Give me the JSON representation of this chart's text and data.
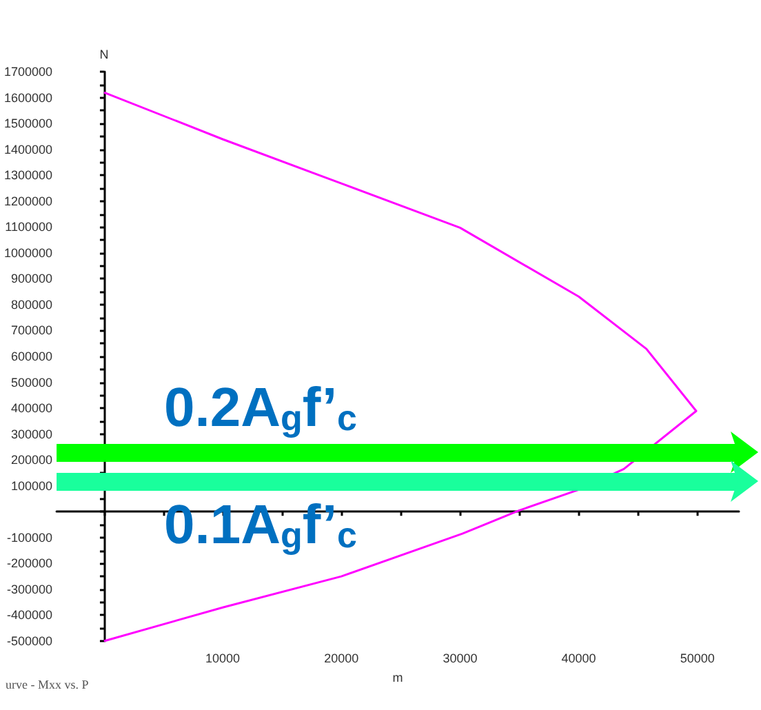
{
  "chart_data": {
    "type": "line",
    "xlabel": "m",
    "ylabel": "N",
    "x": [
      0,
      10000,
      20000,
      30000,
      40000,
      45700,
      49900,
      43800,
      40000,
      35000,
      30200,
      20000,
      10000,
      0
    ],
    "series": [
      {
        "color": "#ff00ff",
        "values": [
          1620000,
          1439000,
          1268000,
          1097000,
          831000,
          629000,
          389000,
          165000,
          85000,
          5000,
          -85000,
          -250000,
          -370000,
          -500000
        ]
      }
    ],
    "xlim": [
      -4000,
      53500
    ],
    "xticks": [
      {
        "value": 0,
        "label": null
      },
      {
        "value": 5000,
        "label": null
      },
      10000,
      {
        "value": 15000,
        "label": null
      },
      20000,
      {
        "value": 25000,
        "label": null
      },
      30000,
      {
        "value": 35000,
        "label": null
      },
      40000,
      {
        "value": 45000,
        "label": null
      },
      50000
    ],
    "ylim": [
      -500000,
      1700000
    ],
    "yticks": [
      -500000,
      {
        "value": -450000,
        "label": null
      },
      -400000,
      {
        "value": -350000,
        "label": null
      },
      -300000,
      {
        "value": -250000,
        "label": null
      },
      -200000,
      {
        "value": -150000,
        "label": null
      },
      -100000,
      {
        "value": -50000,
        "label": null
      },
      {
        "value": 0,
        "label": null
      },
      {
        "value": 50000,
        "label": null
      },
      100000,
      {
        "value": 150000,
        "label": null
      },
      200000,
      {
        "value": 250000,
        "label": null
      },
      300000,
      {
        "value": 350000,
        "label": null
      },
      400000,
      {
        "value": 450000,
        "label": null
      },
      500000,
      {
        "value": 550000,
        "label": null
      },
      600000,
      {
        "value": 650000,
        "label": null
      },
      700000,
      {
        "value": 750000,
        "label": null
      },
      800000,
      {
        "value": 850000,
        "label": null
      },
      900000,
      {
        "value": 950000,
        "label": null
      },
      1000000,
      {
        "value": 1050000,
        "label": null
      },
      1100000,
      {
        "value": 1150000,
        "label": null
      },
      1200000,
      {
        "value": 1250000,
        "label": null
      },
      1300000,
      {
        "value": 1350000,
        "label": null
      },
      1400000,
      {
        "value": 1450000,
        "label": null
      },
      1500000,
      {
        "value": 1550000,
        "label": null
      },
      1600000,
      {
        "value": 1650000,
        "label": null
      },
      1700000
    ],
    "ref_lines": [
      {
        "axis": "y",
        "value": 229000,
        "label": "0.2A$_{g}$f’$_{c}$",
        "color": "#00ff00"
      },
      {
        "axis": "y",
        "value": 117000,
        "label": "0.1A$_{g}$f’$_{c}$",
        "color": "#19ff9c"
      }
    ],
    "marker": "none",
    "line_style": "solid",
    "annotations": [
      "urve - Mxx vs. P"
    ]
  }
}
